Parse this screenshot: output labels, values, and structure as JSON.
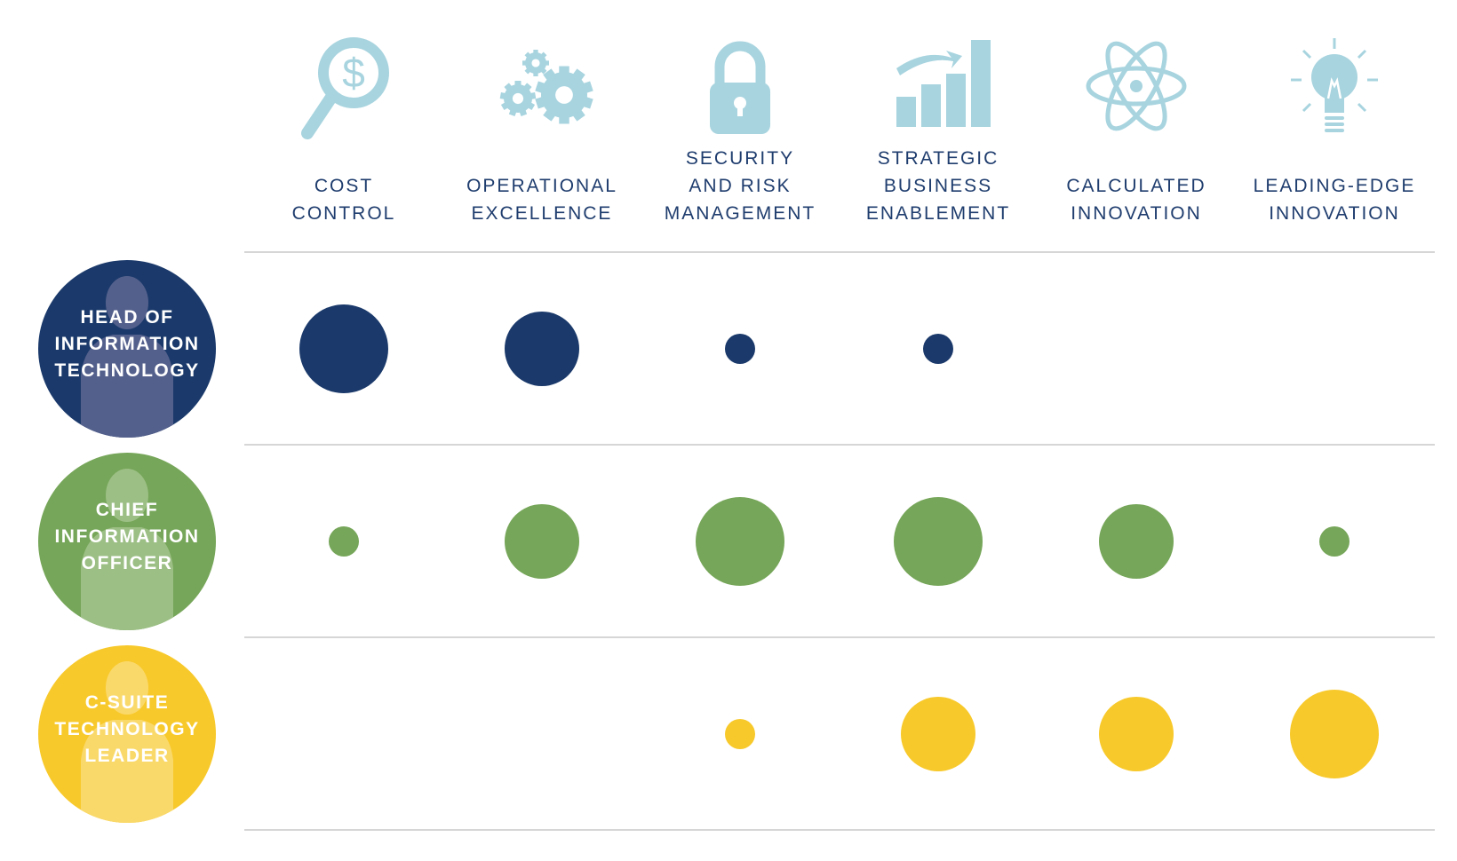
{
  "chart_data": {
    "type": "bubble-matrix",
    "title": "",
    "columns": [
      {
        "key": "cost",
        "label_lines": [
          "COST",
          "CONTROL"
        ],
        "icon": "magnifier-dollar-icon"
      },
      {
        "key": "opex",
        "label_lines": [
          "OPERATIONAL",
          "EXCELLENCE"
        ],
        "icon": "gears-icon"
      },
      {
        "key": "security",
        "label_lines": [
          "SECURITY",
          "AND RISK",
          "MANAGEMENT"
        ],
        "icon": "padlock-icon"
      },
      {
        "key": "strategic",
        "label_lines": [
          "STRATEGIC",
          "BUSINESS",
          "ENABLEMENT"
        ],
        "icon": "growth-bar-chart-icon"
      },
      {
        "key": "calculated",
        "label_lines": [
          "CALCULATED",
          "INNOVATION"
        ],
        "icon": "atom-icon"
      },
      {
        "key": "leading",
        "label_lines": [
          "LEADING-EDGE",
          "INNOVATION"
        ],
        "icon": "lightbulb-icon"
      }
    ],
    "rows": [
      {
        "key": "hoit",
        "label_lines": [
          "HEAD OF",
          "INFORMATION",
          "TECHNOLOGY"
        ],
        "color": "#1b3a6b",
        "figure_color": "#54608c",
        "values": [
          4,
          3,
          1,
          1,
          0,
          0
        ]
      },
      {
        "key": "cio",
        "label_lines": [
          "CHIEF",
          "INFORMATION",
          "OFFICER"
        ],
        "color": "#76a659",
        "figure_color": "#9cbf85",
        "values": [
          1,
          3,
          4,
          4,
          3,
          1
        ]
      },
      {
        "key": "csuite",
        "label_lines": [
          "C-SUITE",
          "TECHNOLOGY",
          "LEADER"
        ],
        "color": "#f8c92b",
        "figure_color": "#fad96b",
        "values": [
          0,
          0,
          1,
          3,
          3,
          4
        ]
      }
    ],
    "size_scale": [
      "none",
      "small",
      "medium",
      "",
      "large"
    ],
    "icon_color": "#a8d4df",
    "label_color": "#1f3d6e",
    "rule_color": "#d6d6d6"
  }
}
